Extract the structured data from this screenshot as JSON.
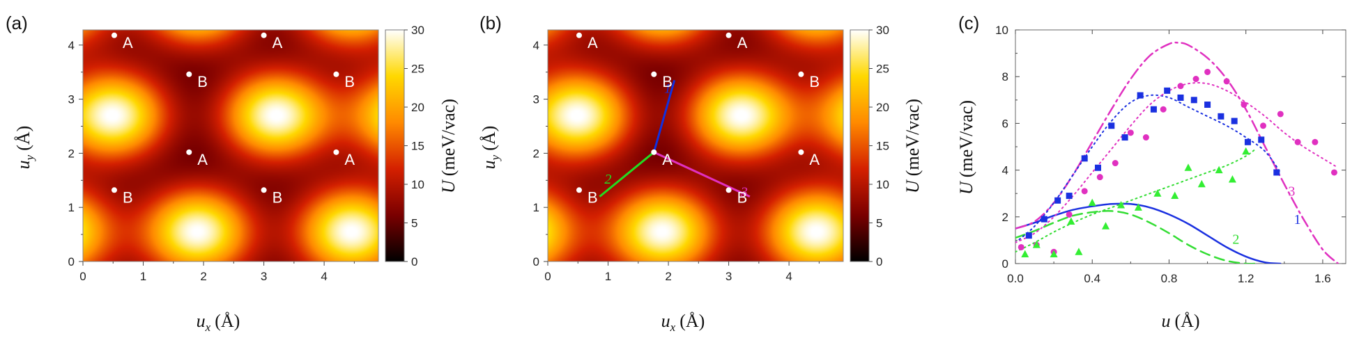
{
  "panels": [
    {
      "label": "(a)",
      "xlabel_main": "u",
      "xlabel_sub": "x",
      "xlabel_unit": "(Å)",
      "ylabel_main": "u",
      "ylabel_sub": "y",
      "ylabel_unit": "(Å)"
    },
    {
      "label": "(b)",
      "xlabel_main": "u",
      "xlabel_sub": "x",
      "xlabel_unit": "(Å)",
      "ylabel_main": "u",
      "ylabel_sub": "y",
      "ylabel_unit": "(Å)"
    },
    {
      "label": "(c)",
      "xlabel_main": "u",
      "xlabel_unit": "(Å)",
      "ylabel_main": "U",
      "ylabel_unit": "(meV/vac)"
    }
  ],
  "colorbar": {
    "label_main": "U",
    "label_unit": "(meV/vac)",
    "ticks": [
      "0",
      "5",
      "10",
      "15",
      "20",
      "25",
      "30"
    ],
    "range": [
      0,
      30
    ]
  },
  "chart_data": [
    {
      "type": "heatmap",
      "xlim": [
        0,
        4.9
      ],
      "ylim": [
        0,
        4.28
      ],
      "xticks": [
        "0",
        "1",
        "2",
        "3",
        "4"
      ],
      "yticks": [
        "0",
        "1",
        "2",
        "3",
        "4"
      ],
      "colormap": [
        "#000000",
        "#7a0000",
        "#d42000",
        "#ff8a00",
        "#ffd800",
        "#ffffff"
      ],
      "maxima": [
        [
          0.5,
          2.7
        ],
        [
          3.2,
          2.7
        ],
        [
          1.9,
          0.55
        ],
        [
          4.45,
          0.55
        ]
      ],
      "sites": [
        {
          "label": "A",
          "x": 0.52,
          "y": 4.18
        },
        {
          "label": "A",
          "x": 3.0,
          "y": 4.18
        },
        {
          "label": "B",
          "x": 1.76,
          "y": 3.46
        },
        {
          "label": "B",
          "x": 4.2,
          "y": 3.46
        },
        {
          "label": "A",
          "x": 1.76,
          "y": 2.02
        },
        {
          "label": "A",
          "x": 4.2,
          "y": 2.02
        },
        {
          "label": "B",
          "x": 0.52,
          "y": 1.32
        },
        {
          "label": "B",
          "x": 3.0,
          "y": 1.32
        }
      ]
    },
    {
      "type": "heatmap",
      "xlim": [
        0,
        4.9
      ],
      "ylim": [
        0,
        4.28
      ],
      "xticks": [
        "0",
        "1",
        "2",
        "3",
        "4"
      ],
      "yticks": [
        "0",
        "1",
        "2",
        "3",
        "4"
      ],
      "colormap": [
        "#000000",
        "#7a0000",
        "#d42000",
        "#ff8a00",
        "#ffd800",
        "#ffffff"
      ],
      "maxima": [
        [
          0.5,
          2.7
        ],
        [
          3.2,
          2.7
        ],
        [
          1.9,
          0.55
        ],
        [
          4.45,
          0.55
        ]
      ],
      "sites": [
        {
          "label": "A",
          "x": 0.52,
          "y": 4.18
        },
        {
          "label": "A",
          "x": 3.0,
          "y": 4.18
        },
        {
          "label": "B",
          "x": 1.76,
          "y": 3.46
        },
        {
          "label": "B",
          "x": 4.2,
          "y": 3.46
        },
        {
          "label": "A",
          "x": 1.76,
          "y": 2.02
        },
        {
          "label": "A",
          "x": 4.2,
          "y": 2.02
        },
        {
          "label": "B",
          "x": 0.52,
          "y": 1.32
        },
        {
          "label": "B",
          "x": 3.0,
          "y": 1.32
        }
      ],
      "paths": [
        {
          "name": "1",
          "color": "#1030e0",
          "from": [
            1.76,
            2.02
          ],
          "to": [
            2.1,
            3.35
          ],
          "label_at": [
            1.93,
            3.12
          ]
        },
        {
          "name": "2",
          "color": "#22dd22",
          "from": [
            1.76,
            2.02
          ],
          "to": [
            0.86,
            1.2
          ],
          "label_at": [
            0.94,
            1.44
          ]
        },
        {
          "name": "3",
          "color": "#e030c0",
          "from": [
            1.76,
            2.02
          ],
          "to": [
            3.35,
            1.2
          ],
          "label_at": [
            3.2,
            1.2
          ]
        }
      ]
    },
    {
      "type": "line",
      "xlim": [
        0,
        1.72
      ],
      "ylim": [
        0,
        10
      ],
      "xticks": [
        "0.0",
        "0.4",
        "0.8",
        "1.2",
        "1.6"
      ],
      "yticks": [
        "0",
        "2",
        "4",
        "6",
        "8",
        "10"
      ],
      "series": [
        {
          "name": "1",
          "color": "#1a30e0",
          "style": "solid",
          "x": [
            0,
            0.1,
            0.2,
            0.3,
            0.4,
            0.5,
            0.6,
            0.7,
            0.8,
            0.9,
            1.0,
            1.1,
            1.2,
            1.3,
            1.38
          ],
          "y": [
            1.5,
            1.75,
            2.05,
            2.3,
            2.45,
            2.55,
            2.55,
            2.4,
            2.1,
            1.7,
            1.2,
            0.7,
            0.3,
            0.05,
            0
          ]
        },
        {
          "name": "2",
          "color": "#33dd33",
          "style": "dashed",
          "x": [
            0,
            0.1,
            0.2,
            0.3,
            0.4,
            0.5,
            0.6,
            0.7,
            0.8,
            0.9,
            1.0,
            1.1,
            1.2,
            1.25
          ],
          "y": [
            1.1,
            1.4,
            1.75,
            2.05,
            2.2,
            2.25,
            2.1,
            1.75,
            1.3,
            0.8,
            0.4,
            0.12,
            0,
            0
          ]
        },
        {
          "name": "3",
          "color": "#e030c0",
          "style": "dashdot",
          "x": [
            0,
            0.1,
            0.2,
            0.3,
            0.4,
            0.5,
            0.6,
            0.7,
            0.8,
            0.85,
            0.9,
            1.0,
            1.1,
            1.2,
            1.3,
            1.4,
            1.5,
            1.6,
            1.68
          ],
          "y": [
            1.5,
            1.8,
            2.6,
            3.8,
            5.2,
            6.6,
            7.9,
            8.9,
            9.4,
            9.45,
            9.35,
            8.8,
            7.9,
            6.6,
            5.0,
            3.4,
            1.9,
            0.6,
            0
          ]
        },
        {
          "name": "",
          "color": "#1a30e0",
          "style": "dotted",
          "x": [
            0,
            0.1,
            0.2,
            0.3,
            0.4,
            0.5,
            0.6,
            0.7,
            0.8,
            0.9,
            1.0,
            1.1,
            1.2,
            1.3,
            1.38
          ],
          "y": [
            0.9,
            1.6,
            2.6,
            3.8,
            5.0,
            6.1,
            6.9,
            7.2,
            7.1,
            6.7,
            6.3,
            5.9,
            5.4,
            4.8,
            3.9
          ]
        },
        {
          "name": "",
          "color": "#e030c0",
          "style": "dotted",
          "x": [
            0,
            0.1,
            0.2,
            0.3,
            0.4,
            0.5,
            0.6,
            0.7,
            0.8,
            0.9,
            1.0,
            1.1,
            1.2,
            1.3,
            1.4,
            1.5,
            1.6,
            1.68
          ],
          "y": [
            0.9,
            1.3,
            2.0,
            2.9,
            3.9,
            4.9,
            5.9,
            6.8,
            7.4,
            7.7,
            7.7,
            7.4,
            6.9,
            6.3,
            5.6,
            5.0,
            4.5,
            4.1
          ]
        },
        {
          "name": "",
          "color": "#33dd33",
          "style": "dotted",
          "x": [
            0,
            0.1,
            0.2,
            0.3,
            0.4,
            0.5,
            0.6,
            0.7,
            0.8,
            0.9,
            1.0,
            1.1,
            1.2,
            1.25
          ],
          "y": [
            0.5,
            0.9,
            1.35,
            1.75,
            2.1,
            2.4,
            2.7,
            3.0,
            3.3,
            3.6,
            3.9,
            4.2,
            4.6,
            4.9
          ]
        }
      ],
      "markers": [
        {
          "color": "#1a30e0",
          "shape": "square",
          "x": [
            0.07,
            0.15,
            0.22,
            0.28,
            0.36,
            0.43,
            0.5,
            0.57,
            0.65,
            0.72,
            0.79,
            0.86,
            0.93,
            1.0,
            1.07,
            1.14,
            1.21,
            1.28,
            1.36
          ],
          "y": [
            1.2,
            1.9,
            2.7,
            2.9,
            4.5,
            4.1,
            5.9,
            5.4,
            7.2,
            6.6,
            7.4,
            7.1,
            7.0,
            6.8,
            6.3,
            6.1,
            5.2,
            5.3,
            3.9
          ]
        },
        {
          "color": "#e030c0",
          "shape": "circle",
          "x": [
            0.03,
            0.11,
            0.2,
            0.28,
            0.36,
            0.44,
            0.52,
            0.6,
            0.68,
            0.77,
            0.86,
            0.94,
            1.0,
            1.1,
            1.19,
            1.29,
            1.38,
            1.47,
            1.56,
            1.66
          ],
          "y": [
            0.7,
            0.8,
            0.5,
            2.1,
            3.1,
            3.7,
            4.3,
            5.6,
            5.4,
            6.6,
            7.6,
            7.9,
            8.2,
            7.8,
            6.8,
            5.9,
            6.4,
            5.2,
            5.2,
            3.9
          ]
        },
        {
          "color": "#33ee33",
          "shape": "triangle",
          "x": [
            0.05,
            0.11,
            0.2,
            0.29,
            0.33,
            0.4,
            0.47,
            0.55,
            0.64,
            0.74,
            0.83,
            0.9,
            0.97,
            1.06,
            1.13,
            1.2
          ],
          "y": [
            0.4,
            0.8,
            0.4,
            1.8,
            0.5,
            2.6,
            1.6,
            2.5,
            2.4,
            3.0,
            2.9,
            4.1,
            3.4,
            4.0,
            3.6,
            4.8
          ]
        }
      ],
      "curve_labels": [
        {
          "text": "1",
          "x": 1.45,
          "y": 1.7,
          "color": "#1a30e0"
        },
        {
          "text": "2",
          "x": 1.13,
          "y": 0.85,
          "color": "#33dd33"
        },
        {
          "text": "3",
          "x": 1.42,
          "y": 2.9,
          "color": "#e030c0"
        }
      ]
    }
  ]
}
